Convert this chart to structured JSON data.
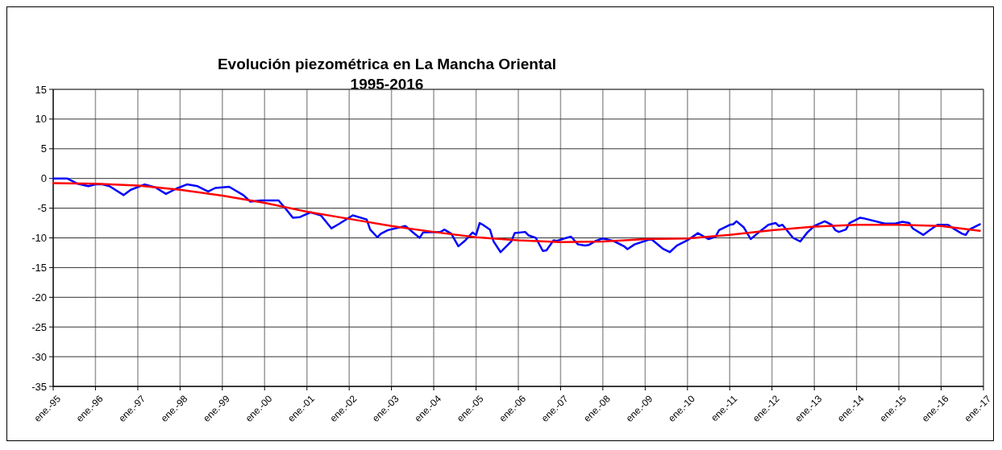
{
  "chart_data": {
    "type": "line",
    "title": "Evolución piezométrica  en La Mancha Oriental\n1995-2016",
    "xlim": [
      "1995-01",
      "2017-01"
    ],
    "xticks": [
      {
        "value": "1995-01",
        "label": "ene.-95"
      },
      {
        "value": "1996-01",
        "label": "ene.-96"
      },
      {
        "value": "1997-01",
        "label": "ene.-97"
      },
      {
        "value": "1998-01",
        "label": "ene.-98"
      },
      {
        "value": "1999-01",
        "label": "ene.-99"
      },
      {
        "value": "2000-01",
        "label": "ene.-00"
      },
      {
        "value": "2001-01",
        "label": "ene.-01"
      },
      {
        "value": "2002-01",
        "label": "ene.-02"
      },
      {
        "value": "2003-01",
        "label": "ene.-03"
      },
      {
        "value": "2004-01",
        "label": "ene.-04"
      },
      {
        "value": "2005-01",
        "label": "ene.-05"
      },
      {
        "value": "2006-01",
        "label": "ene.-06"
      },
      {
        "value": "2007-01",
        "label": "ene.-07"
      },
      {
        "value": "2008-01",
        "label": "ene.-08"
      },
      {
        "value": "2009-01",
        "label": "ene.-09"
      },
      {
        "value": "2010-01",
        "label": "ene.-10"
      },
      {
        "value": "2011-01",
        "label": "ene.-11"
      },
      {
        "value": "2012-01",
        "label": "ene.-12"
      },
      {
        "value": "2013-01",
        "label": "ene.-13"
      },
      {
        "value": "2014-01",
        "label": "ene.-14"
      },
      {
        "value": "2015-01",
        "label": "ene.-15"
      },
      {
        "value": "2016-01",
        "label": "ene.-16"
      },
      {
        "value": "2017-01",
        "label": "ene.-17"
      }
    ],
    "ylim": [
      -35,
      15
    ],
    "yticks": [
      -35,
      -30,
      -25,
      -20,
      -15,
      -10,
      -5,
      0,
      5,
      10,
      15
    ],
    "grid": true,
    "marker": "none",
    "line_style": "solid",
    "series": [
      {
        "type": "line",
        "color": "#0000ff",
        "x": [
          "1995-01",
          "1995-05",
          "1995-08",
          "1995-11",
          "1996-01",
          "1996-03",
          "1996-05",
          "1996-09",
          "1996-11",
          "1997-03",
          "1997-06",
          "1997-09",
          "1997-12",
          "1998-03",
          "1998-06",
          "1998-09",
          "1998-11",
          "1999-03",
          "1999-07",
          "1999-09",
          "1999-12",
          "2000-05",
          "2000-07",
          "2000-09",
          "2000-11",
          "2001-02",
          "2001-05",
          "2001-08",
          "2001-10",
          "2002-02",
          "2002-06",
          "2002-07",
          "2002-09",
          "2002-10",
          "2002-12",
          "2003-05",
          "2003-09",
          "2003-10",
          "2004-03",
          "2004-04",
          "2004-06",
          "2004-08",
          "2004-10",
          "2004-12",
          "2005-01",
          "2005-02",
          "2005-03",
          "2005-05",
          "2005-06",
          "2005-08",
          "2005-11",
          "2005-12",
          "2006-03",
          "2006-04",
          "2006-06",
          "2006-08",
          "2006-09",
          "2006-11",
          "2006-12",
          "2007-02",
          "2007-04",
          "2007-06",
          "2007-08",
          "2007-09",
          "2007-11",
          "2008-01",
          "2008-04",
          "2008-07",
          "2008-08",
          "2008-10",
          "2009-02",
          "2009-03",
          "2009-06",
          "2009-08",
          "2009-10",
          "2010-01",
          "2010-04",
          "2010-07",
          "2010-09",
          "2010-10",
          "2011-01",
          "2011-02",
          "2011-03",
          "2011-05",
          "2011-07",
          "2011-09",
          "2011-12",
          "2012-02",
          "2012-03",
          "2012-04",
          "2012-07",
          "2012-09",
          "2012-11",
          "2013-01",
          "2013-04",
          "2013-06",
          "2013-07",
          "2013-08",
          "2013-10",
          "2013-11",
          "2014-02",
          "2014-03",
          "2014-09",
          "2014-12",
          "2015-02",
          "2015-04",
          "2015-05",
          "2015-08",
          "2015-10",
          "2015-12",
          "2016-03",
          "2016-05",
          "2016-07",
          "2016-08",
          "2016-09",
          "2016-12"
        ],
        "values": [
          0,
          0,
          -0.9,
          -1.3,
          -1.0,
          -1.0,
          -1.3,
          -2.8,
          -1.9,
          -1.0,
          -1.5,
          -2.6,
          -1.7,
          -1.0,
          -1.3,
          -2.2,
          -1.6,
          -1.4,
          -2.8,
          -3.9,
          -3.7,
          -3.7,
          -5.1,
          -6.6,
          -6.5,
          -5.7,
          -6.2,
          -8.4,
          -7.7,
          -6.2,
          -6.9,
          -8.6,
          -9.9,
          -9.3,
          -8.7,
          -8.0,
          -10.0,
          -9.1,
          -9.0,
          -8.6,
          -9.3,
          -11.4,
          -10.4,
          -9.1,
          -9.5,
          -7.5,
          -7.8,
          -8.6,
          -10.6,
          -12.4,
          -10.6,
          -9.2,
          -9.0,
          -9.6,
          -10.0,
          -12.2,
          -12.1,
          -10.4,
          -10.5,
          -10.1,
          -9.8,
          -11.1,
          -11.3,
          -11.2,
          -10.5,
          -10.1,
          -10.5,
          -11.4,
          -11.9,
          -11.1,
          -10.3,
          -10.3,
          -11.8,
          -12.4,
          -11.3,
          -10.4,
          -9.2,
          -10.2,
          -9.8,
          -8.7,
          -7.8,
          -7.7,
          -7.2,
          -8.2,
          -10.2,
          -9.2,
          -7.8,
          -7.5,
          -8.0,
          -7.8,
          -10.0,
          -10.6,
          -9.1,
          -8.0,
          -7.2,
          -7.8,
          -8.7,
          -9.0,
          -8.6,
          -7.5,
          -6.6,
          -6.7,
          -7.6,
          -7.6,
          -7.3,
          -7.5,
          -8.4,
          -9.5,
          -8.6,
          -7.8,
          -7.8,
          -8.6,
          -9.3,
          -9.5,
          -8.6,
          -7.7
        ]
      },
      {
        "type": "line",
        "color": "#ff0000",
        "x": [
          "1995-01",
          "1996-01",
          "1997-01",
          "1998-01",
          "1999-01",
          "2000-01",
          "2001-01",
          "2002-01",
          "2003-01",
          "2004-01",
          "2005-01",
          "2006-01",
          "2007-01",
          "2008-01",
          "2009-01",
          "2010-01",
          "2011-01",
          "2012-01",
          "2013-01",
          "2014-01",
          "2015-01",
          "2016-01",
          "2016-12"
        ],
        "values": [
          -0.8,
          -0.9,
          -1.2,
          -1.9,
          -2.9,
          -4.1,
          -5.6,
          -6.8,
          -8.0,
          -9.0,
          -9.9,
          -10.4,
          -10.7,
          -10.6,
          -10.2,
          -10.1,
          -9.5,
          -8.7,
          -8.1,
          -7.8,
          -7.8,
          -8.0,
          -8.8
        ]
      }
    ]
  }
}
